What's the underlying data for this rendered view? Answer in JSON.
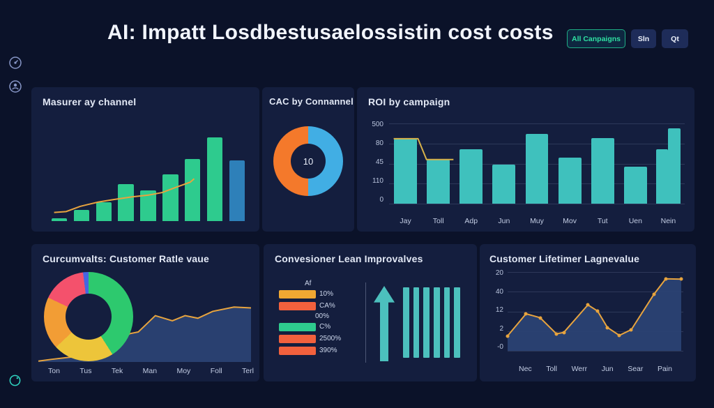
{
  "app": {
    "title": "AI: Impatt Losdbestusaelossistin cost costs",
    "actions": [
      {
        "id": "all-campaigns",
        "label": "All Canpaigns"
      },
      {
        "id": "sln",
        "label": "Sln"
      },
      {
        "id": "qt",
        "label": "Qt"
      }
    ],
    "palette": {
      "background": "#0b1229",
      "panel": "#141e3e",
      "accent_teal": "#2fe0a2",
      "bar_green": "#2ecb8e",
      "bar_blue": "#2e80b9",
      "bar_teal": "#3fc1bd",
      "line_orange": "#e8a43e",
      "donut_orange": "#f4792b",
      "donut_blue": "#41aee4",
      "area_navy": "#2b4272"
    },
    "sidebar_icons": [
      "gauge-icon",
      "profile-icon"
    ],
    "footer_icon": "timer-icon"
  },
  "chart_data": [
    {
      "id": "measure-by-channel",
      "type": "bar",
      "title": "Masurer ay channel",
      "categories": [
        "",
        "",
        "",
        "",
        "",
        "",
        "",
        "",
        ""
      ],
      "values": [
        2,
        9,
        15,
        30,
        25,
        38,
        50,
        68,
        49
      ],
      "ylim": [
        0,
        70
      ],
      "bar_colors": [
        "#2ecb8e",
        "#2ecb8e",
        "#2ecb8e",
        "#2ecb8e",
        "#2ecb8e",
        "#2ecb8e",
        "#2ecb8e",
        "#2ecb8e",
        "#2e80b9"
      ],
      "trend_line_color": "#e8a43e",
      "trend_line_points_pct": [
        [
          3,
          10
        ],
        [
          9,
          11
        ],
        [
          16,
          17
        ],
        [
          25,
          22
        ],
        [
          33,
          25
        ],
        [
          42,
          28
        ],
        [
          50,
          30
        ],
        [
          57,
          33
        ],
        [
          65,
          40
        ],
        [
          71,
          45
        ],
        [
          73,
          49
        ]
      ],
      "grid": false,
      "legend": false
    },
    {
      "id": "cac-by-channel",
      "type": "pie",
      "title": "CAC by Connannel",
      "center_label": "10",
      "slices": [
        {
          "label": "right-half",
          "value": 50,
          "color": "#41aee4"
        },
        {
          "label": "left-half",
          "value": 50,
          "color": "#f4792b"
        }
      ],
      "legend": false
    },
    {
      "id": "roi-by-campaign",
      "type": "bar",
      "title": "ROI by campaign",
      "categories": [
        "Jay",
        "Toll",
        "Adp",
        "Jun",
        "Muy",
        "Mov",
        "Tut",
        "Uen",
        "Nein"
      ],
      "values": [
        405,
        275,
        340,
        245,
        435,
        285,
        410,
        230,
        [
          340,
          470
        ]
      ],
      "ylim": [
        0,
        500
      ],
      "y_ticks": [
        "500",
        "80",
        "45",
        "110",
        "0"
      ],
      "bar_color": "#3fc1bd",
      "overlay_line_color": "#d8b24a",
      "grid": true,
      "legend": false
    },
    {
      "id": "customer-rate-value",
      "type": "pie",
      "title": "Curcumvalts: Customer Ratle vaue",
      "slices": [
        {
          "label": "green",
          "value": 41,
          "color": "#2dc96e"
        },
        {
          "label": "yellow",
          "value": 22,
          "color": "#edc53a"
        },
        {
          "label": "orange",
          "value": 19,
          "color": "#f29d35"
        },
        {
          "label": "red",
          "value": 16,
          "color": "#f4516c"
        },
        {
          "label": "blue",
          "value": 2,
          "color": "#4666e0"
        }
      ],
      "companion_area": {
        "type": "area",
        "categories": [
          "Ton",
          "Tus",
          "Tek",
          "Man",
          "Moy",
          "Foll",
          "Terl"
        ],
        "points_pct": [
          [
            0,
            1
          ],
          [
            6,
            3
          ],
          [
            20,
            7
          ],
          [
            30,
            9
          ],
          [
            43,
            33
          ],
          [
            47,
            35
          ],
          [
            55,
            54
          ],
          [
            63,
            48
          ],
          [
            69,
            54
          ],
          [
            75,
            51
          ],
          [
            82,
            59
          ],
          [
            92,
            64
          ],
          [
            100,
            63
          ]
        ],
        "area_color": "#2b4272",
        "line_color": "#e8a43e"
      },
      "legend": false
    },
    {
      "id": "conversion-improvements",
      "type": "table",
      "title": "Convesioner Lean Improvalves",
      "label_above_first": "Af",
      "bars": [
        {
          "label": "10%",
          "color": "#f0a832"
        },
        {
          "label": "CA%",
          "color": "#f2613d"
        },
        {
          "label": "C%",
          "color": "#2ecb8e",
          "label_above": "00%"
        },
        {
          "label": "2500%",
          "color": "#f2613d"
        },
        {
          "label": "390%",
          "color": "#f2613d"
        }
      ],
      "arrow_icon": "up-arrow-icon",
      "equal_vertical_bars": 6,
      "teal": "#4cc0bd"
    },
    {
      "id": "customer-lifetime-value",
      "type": "area",
      "title": "Customer Lifetimer Lagnevalue",
      "categories": [
        "Nec",
        "Toll",
        "Werr",
        "Jun",
        "Sear",
        "Pain"
      ],
      "y_ticks": [
        "20",
        "40",
        "12",
        "2",
        "-0"
      ],
      "points_pct": [
        [
          0,
          19
        ],
        [
          10.5,
          47
        ],
        [
          18.5,
          42
        ],
        [
          27.8,
          21.5
        ],
        [
          32,
          23.4
        ],
        [
          45.7,
          58.3
        ],
        [
          51.2,
          50.5
        ],
        [
          56.8,
          29.6
        ],
        [
          63.6,
          19.6
        ],
        [
          70.4,
          26.9
        ],
        [
          83.3,
          71.8
        ],
        [
          90,
          91.4
        ],
        [
          98.8,
          90.9
        ]
      ],
      "area_color": "#2b4272",
      "line_color": "#e8a43e",
      "grid": true,
      "legend": false
    }
  ]
}
